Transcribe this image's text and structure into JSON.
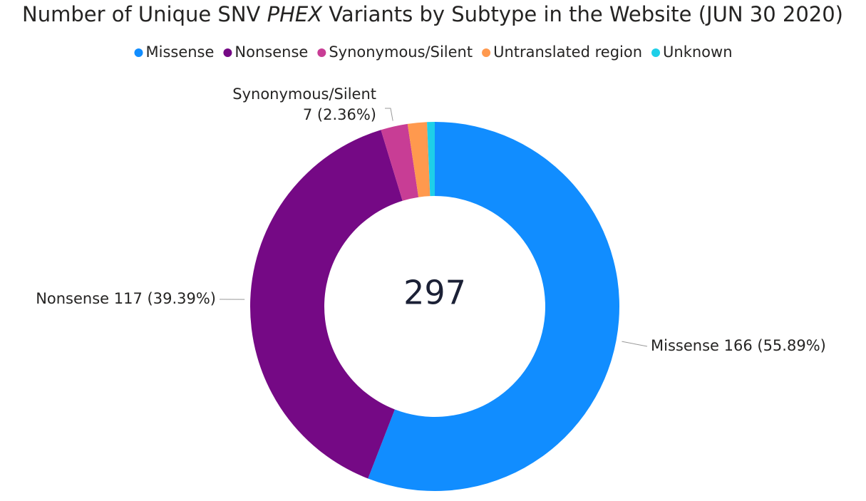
{
  "chart_data": {
    "type": "donut",
    "title_parts": [
      "Number of Unique SNV ",
      "PHEX",
      " Variants by Subtype in the Website (JUN 30 2020)"
    ],
    "categories": [
      "Missense",
      "Nonsense",
      "Synonymous/Silent",
      "Untranslated region",
      "Unknown"
    ],
    "values": [
      166,
      117,
      7,
      5,
      2
    ],
    "value_labels": [
      "166 (55.89%)",
      "117 (39.39%)",
      "7 (2.36%)",
      null,
      null
    ],
    "colors": [
      "#118DFF",
      "#750985",
      "#C83D95",
      "#FF994E",
      "#1ECFE8"
    ],
    "total": 297,
    "legend": "top"
  }
}
